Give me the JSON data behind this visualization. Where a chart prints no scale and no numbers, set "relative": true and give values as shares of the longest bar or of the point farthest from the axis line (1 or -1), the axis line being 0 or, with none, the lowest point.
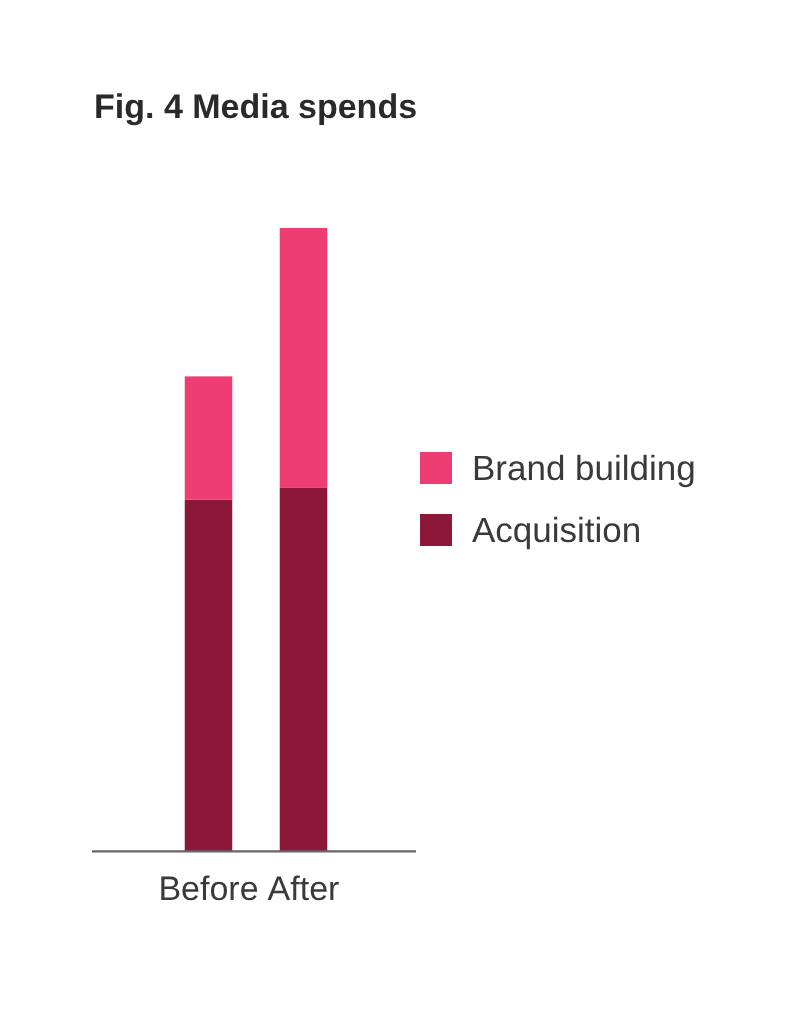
{
  "chart_data": {
    "type": "bar",
    "title": "Fig. 4 Media spends",
    "categories": [
      "Before",
      "After"
    ],
    "stacked": true,
    "relative": true,
    "legend": "right",
    "series": [
      {
        "name": "Acquisition",
        "color": "#8c1738",
        "values": [
          0.564,
          0.583
        ]
      },
      {
        "name": "Brand building",
        "color": "#ee3d72",
        "values": [
          0.198,
          0.417
        ]
      }
    ]
  }
}
